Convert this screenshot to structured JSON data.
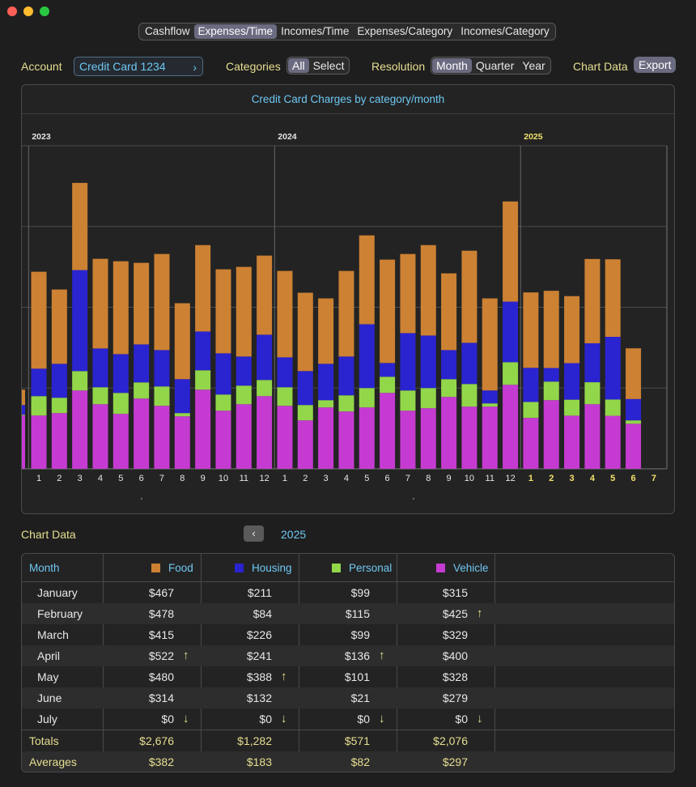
{
  "tabs": [
    "Cashflow",
    "Expenses/Time",
    "Incomes/Time",
    "Expenses/Category",
    "Incomes/Category"
  ],
  "active_tab": "Expenses/Time",
  "controls": {
    "account_label": "Account",
    "account_value": "Credit Card 1234",
    "categories_label": "Categories",
    "categories_options": [
      "All",
      "Select"
    ],
    "resolution_label": "Resolution",
    "resolution_options": [
      "Month",
      "Quarter",
      "Year"
    ],
    "chart_data_label": "Chart Data",
    "export_label": "Export"
  },
  "colors": {
    "food": "#cc8133",
    "housing": "#2a24d0",
    "personal": "#92d64a",
    "vehicle": "#c53bd2",
    "accent_blue": "#6fc8f3",
    "accent_yellow": "#e7df92"
  },
  "chart_data": {
    "type": "bar",
    "stacked": true,
    "title": "Credit Card Charges by category/month",
    "year_labels": [
      "2023",
      "2024",
      "2025"
    ],
    "categories": [
      "1",
      "2",
      "3",
      "4",
      "5",
      "6",
      "7",
      "8",
      "9",
      "10",
      "11",
      "12",
      "1",
      "2",
      "3",
      "4",
      "5",
      "6",
      "7",
      "8",
      "9",
      "10",
      "11",
      "12",
      "1",
      "2",
      "3",
      "4",
      "5",
      "6",
      "7"
    ],
    "series": [
      {
        "name": "Vehicle",
        "values": [
          330,
          345,
          485,
          400,
          340,
          435,
          390,
          325,
          490,
          360,
          400,
          450,
          390,
          300,
          380,
          355,
          380,
          470,
          360,
          375,
          445,
          385,
          385,
          520,
          315,
          425,
          329,
          400,
          328,
          279,
          0
        ]
      },
      {
        "name": "Personal",
        "values": [
          120,
          95,
          120,
          105,
          130,
          100,
          120,
          20,
          120,
          100,
          115,
          100,
          115,
          95,
          45,
          100,
          120,
          100,
          125,
          125,
          110,
          140,
          20,
          140,
          99,
          115,
          99,
          136,
          101,
          21,
          0
        ]
      },
      {
        "name": "Housing",
        "values": [
          170,
          210,
          625,
          240,
          240,
          235,
          225,
          210,
          240,
          255,
          180,
          280,
          185,
          210,
          225,
          240,
          395,
          85,
          355,
          325,
          180,
          255,
          80,
          375,
          211,
          84,
          226,
          241,
          388,
          132,
          0
        ]
      },
      {
        "name": "Food",
        "values": [
          600,
          460,
          540,
          555,
          575,
          505,
          595,
          470,
          535,
          520,
          555,
          490,
          535,
          485,
          405,
          530,
          550,
          640,
          490,
          560,
          475,
          570,
          570,
          620,
          467,
          478,
          415,
          522,
          480,
          314,
          0
        ]
      }
    ],
    "ylim": [
      0,
      2000
    ],
    "xlabel": "",
    "ylabel": ""
  },
  "data_section": {
    "label": "Chart Data",
    "year": "2025"
  },
  "table": {
    "columns": [
      "Month",
      "Food",
      "Housing",
      "Personal",
      "Vehicle"
    ],
    "rows": [
      {
        "month": "January",
        "food": "$467",
        "housing": "$211",
        "personal": "$99",
        "vehicle": "$315",
        "arrows": [
          "",
          "",
          "",
          ""
        ]
      },
      {
        "month": "February",
        "food": "$478",
        "housing": "$84",
        "personal": "$115",
        "vehicle": "$425",
        "arrows": [
          "",
          "",
          "",
          "up"
        ]
      },
      {
        "month": "March",
        "food": "$415",
        "housing": "$226",
        "personal": "$99",
        "vehicle": "$329",
        "arrows": [
          "",
          "",
          "",
          ""
        ]
      },
      {
        "month": "April",
        "food": "$522",
        "housing": "$241",
        "personal": "$136",
        "vehicle": "$400",
        "arrows": [
          "up",
          "",
          "up",
          ""
        ]
      },
      {
        "month": "May",
        "food": "$480",
        "housing": "$388",
        "personal": "$101",
        "vehicle": "$328",
        "arrows": [
          "",
          "up",
          "",
          ""
        ]
      },
      {
        "month": "June",
        "food": "$314",
        "housing": "$132",
        "personal": "$21",
        "vehicle": "$279",
        "arrows": [
          "",
          "",
          "",
          ""
        ]
      },
      {
        "month": "July",
        "food": "$0",
        "housing": "$0",
        "personal": "$0",
        "vehicle": "$0",
        "arrows": [
          "down",
          "down",
          "down",
          "down"
        ]
      }
    ],
    "totals": {
      "label": "Totals",
      "food": "$2,676",
      "housing": "$1,282",
      "personal": "$571",
      "vehicle": "$2,076"
    },
    "averages": {
      "label": "Averages",
      "food": "$382",
      "housing": "$183",
      "personal": "$82",
      "vehicle": "$297"
    }
  },
  "icons": {
    "up_arrow": "↑",
    "down_arrow": "↓",
    "chevron_right": "›",
    "chevron_left": "‹"
  }
}
